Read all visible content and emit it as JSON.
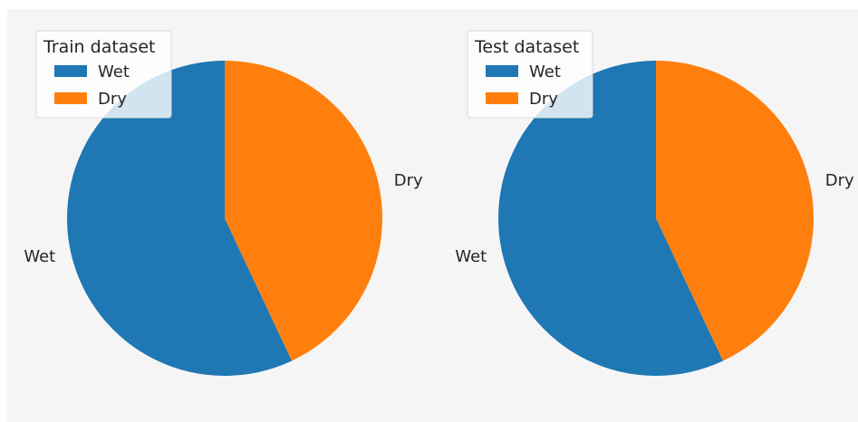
{
  "figure": {
    "background": "#f5f5f5"
  },
  "chart_data": [
    {
      "type": "pie",
      "title": "",
      "legend_title": "Train dataset",
      "legend_position": "top-left",
      "start_angle_deg": 90,
      "direction": "counterclockwise",
      "slices": [
        {
          "label": "Wet",
          "value": 0.57,
          "color": "#1f77b4"
        },
        {
          "label": "Dry",
          "value": 0.43,
          "color": "#ff7f0e"
        }
      ]
    },
    {
      "type": "pie",
      "title": "",
      "legend_title": "Test dataset",
      "legend_position": "top-left",
      "start_angle_deg": 90,
      "direction": "counterclockwise",
      "slices": [
        {
          "label": "Wet",
          "value": 0.57,
          "color": "#1f77b4"
        },
        {
          "label": "Dry",
          "value": 0.43,
          "color": "#ff7f0e"
        }
      ]
    }
  ]
}
